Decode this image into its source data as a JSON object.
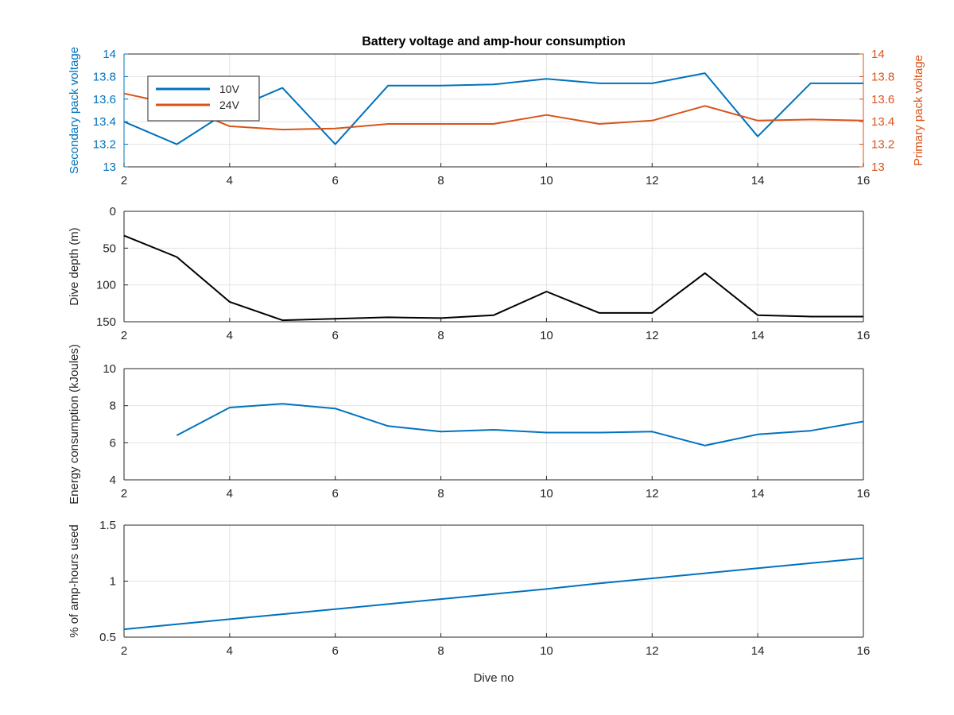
{
  "chart_data": [
    {
      "type": "line",
      "title": "Battery voltage and amp-hour consumption",
      "xlabel": "",
      "ylabel": "Secondary pack voltage",
      "ylabel_right": "Primary pack voltage",
      "xlim": [
        2,
        16
      ],
      "ylim": [
        13,
        14
      ],
      "ylim_right": [
        13,
        14
      ],
      "xticks": [
        "2",
        "4",
        "6",
        "8",
        "10",
        "12",
        "14",
        "16"
      ],
      "yticks": [
        "13",
        "13.2",
        "13.4",
        "13.6",
        "13.8",
        "14"
      ],
      "yticks_right": [
        "13",
        "13.2",
        "13.4",
        "13.6",
        "13.8",
        "14"
      ],
      "grid": true,
      "legend_position": "top-left",
      "series": [
        {
          "name": "10V",
          "axis": "left",
          "color": "#0072BD",
          "x": [
            2,
            3,
            4,
            5,
            6,
            7,
            8,
            9,
            10,
            11,
            12,
            13,
            14,
            15,
            16
          ],
          "y": [
            13.4,
            13.2,
            13.5,
            13.7,
            13.2,
            13.72,
            13.72,
            13.73,
            13.78,
            13.74,
            13.74,
            13.83,
            13.27,
            13.74,
            13.74
          ]
        },
        {
          "name": "24V",
          "axis": "right",
          "color": "#D95319",
          "x": [
            2,
            3,
            4,
            5,
            6,
            7,
            8,
            9,
            10,
            11,
            12,
            13,
            14,
            15,
            16
          ],
          "y": [
            13.65,
            13.55,
            13.36,
            13.33,
            13.34,
            13.38,
            13.38,
            13.38,
            13.46,
            13.38,
            13.41,
            13.54,
            13.41,
            13.42,
            13.41
          ]
        }
      ]
    },
    {
      "type": "line",
      "title": "",
      "xlabel": "",
      "ylabel": "Dive depth (m)",
      "xlim": [
        2,
        16
      ],
      "ylim": [
        0,
        150
      ],
      "y_reversed": true,
      "xticks": [
        "2",
        "4",
        "6",
        "8",
        "10",
        "12",
        "14",
        "16"
      ],
      "yticks": [
        "0",
        "50",
        "100",
        "150"
      ],
      "grid": true,
      "series": [
        {
          "color": "#000000",
          "x": [
            2,
            3,
            4,
            5,
            6,
            7,
            8,
            9,
            10,
            11,
            12,
            13,
            14,
            15,
            16
          ],
          "y": [
            33,
            62,
            123,
            148,
            146,
            144,
            145,
            141,
            109,
            138,
            138,
            84,
            141,
            143,
            143
          ]
        }
      ]
    },
    {
      "type": "line",
      "title": "",
      "xlabel": "",
      "ylabel": "Energy consumption (kJoules)",
      "xlim": [
        2,
        16
      ],
      "ylim": [
        4,
        10
      ],
      "xticks": [
        "2",
        "4",
        "6",
        "8",
        "10",
        "12",
        "14",
        "16"
      ],
      "yticks": [
        "4",
        "6",
        "8",
        "10"
      ],
      "grid": true,
      "series": [
        {
          "color": "#0072BD",
          "x": [
            3,
            4,
            5,
            6,
            7,
            8,
            9,
            10,
            11,
            12,
            13,
            14,
            15,
            16
          ],
          "y": [
            6.4,
            7.9,
            8.1,
            7.85,
            6.9,
            6.6,
            6.7,
            6.55,
            6.55,
            6.6,
            5.85,
            6.45,
            6.65,
            7.15
          ]
        }
      ]
    },
    {
      "type": "line",
      "title": "",
      "xlabel": "Dive no",
      "ylabel": "% of amp-hours used",
      "xlim": [
        2,
        16
      ],
      "ylim": [
        0.5,
        1.5
      ],
      "xticks": [
        "2",
        "4",
        "6",
        "8",
        "10",
        "12",
        "14",
        "16"
      ],
      "yticks": [
        "0.5",
        "1",
        "1.5"
      ],
      "grid": true,
      "series": [
        {
          "color": "#0072BD",
          "x": [
            2,
            3,
            4,
            5,
            6,
            7,
            8,
            9,
            10,
            11,
            12,
            13,
            14,
            15,
            16
          ],
          "y": [
            0.57,
            0.615,
            0.66,
            0.705,
            0.75,
            0.795,
            0.84,
            0.885,
            0.93,
            0.98,
            1.025,
            1.07,
            1.115,
            1.16,
            1.205
          ]
        }
      ]
    }
  ]
}
